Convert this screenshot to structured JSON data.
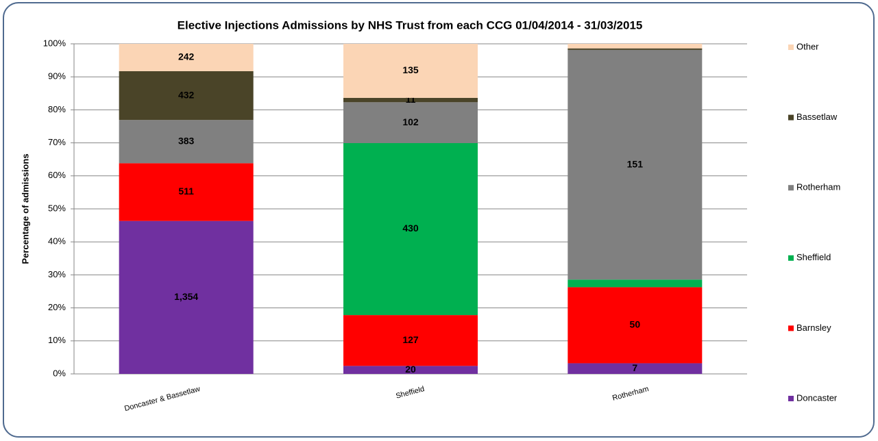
{
  "chart_data": {
    "type": "bar",
    "stacking": "percent",
    "title": "Elective Injections Admissions by NHS Trust from each CCG  01/04/2014 - 31/03/2015",
    "y_label": "Percentage of admissions",
    "categories": [
      "Doncaster & Bassetlaw",
      "Sheffield",
      "Rotherham"
    ],
    "series": [
      {
        "name": "Doncaster",
        "color": "#7030a0",
        "values": [
          1354,
          20,
          7
        ],
        "value_labels": [
          "1,354",
          "20",
          "7"
        ]
      },
      {
        "name": "Barnsley",
        "color": "#ff0000",
        "values": [
          511,
          127,
          50
        ],
        "value_labels": [
          "511",
          "127",
          "50"
        ]
      },
      {
        "name": "Sheffield",
        "color": "#00b050",
        "values": [
          0,
          430,
          5
        ],
        "value_labels": [
          null,
          "430",
          null
        ]
      },
      {
        "name": "Rotherham",
        "color": "#808080",
        "values": [
          383,
          102,
          151
        ],
        "value_labels": [
          "383",
          "102",
          "151"
        ]
      },
      {
        "name": "Bassetlaw",
        "color": "#4a4428",
        "values": [
          432,
          11,
          1
        ],
        "value_labels": [
          "432",
          "11",
          null
        ]
      },
      {
        "name": "Other",
        "color": "#fbd5b5",
        "values": [
          242,
          135,
          3
        ],
        "value_labels": [
          "242",
          "135",
          null
        ]
      }
    ],
    "ylim": [
      0,
      100
    ],
    "yticks": [
      {
        "value": 0,
        "label": "0%"
      },
      {
        "value": 10,
        "label": "10%"
      },
      {
        "value": 20,
        "label": "20%"
      },
      {
        "value": 30,
        "label": "30%"
      },
      {
        "value": 40,
        "label": "40%"
      },
      {
        "value": 50,
        "label": "50%"
      },
      {
        "value": 60,
        "label": "60%"
      },
      {
        "value": 70,
        "label": "70%"
      },
      {
        "value": 80,
        "label": "80%"
      },
      {
        "value": 90,
        "label": "90%"
      },
      {
        "value": 100,
        "label": "100%"
      }
    ],
    "grid": true,
    "legend": "right"
  }
}
